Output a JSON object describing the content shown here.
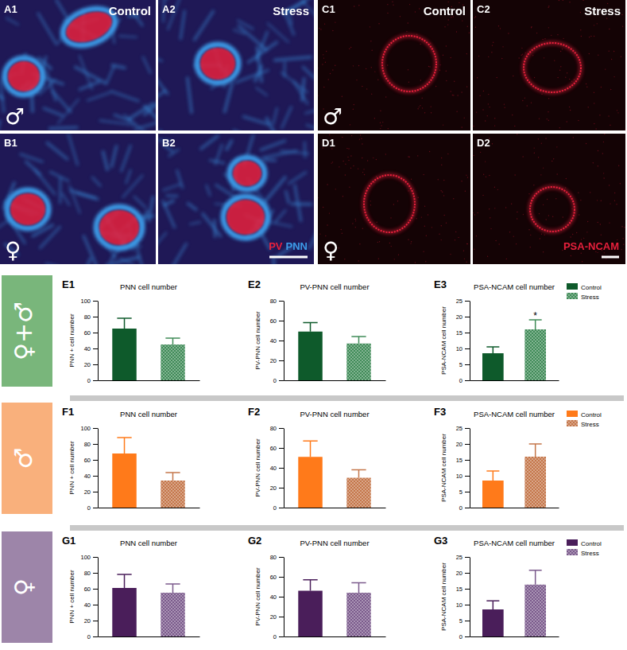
{
  "image_groups": [
    {
      "stain": [
        {
          "text": "PV",
          "color": "#e8203c"
        },
        {
          "text": "PNN",
          "color": "#3c9be8"
        }
      ],
      "panels": [
        {
          "panel": "A1",
          "condition": "Control",
          "sex": "♂"
        },
        {
          "panel": "A2",
          "condition": "Stress"
        },
        {
          "panel": "B1",
          "sex": "♀"
        },
        {
          "panel": "B2"
        }
      ]
    },
    {
      "stain": [
        {
          "text": "PSA-NCAM",
          "color": "#e8203c"
        }
      ],
      "panels": [
        {
          "panel": "C1",
          "condition": "Control",
          "sex": "♂"
        },
        {
          "panel": "C2",
          "condition": "Stress"
        },
        {
          "panel": "D1",
          "sex": "♀"
        },
        {
          "panel": "D2"
        }
      ]
    }
  ],
  "rows": [
    {
      "label": "♀+♂",
      "color": "#79b67b"
    },
    {
      "label": "♂",
      "color": "#f9b07c"
    },
    {
      "label": "♀",
      "color": "#9d85a9"
    }
  ],
  "chart_data": [
    {
      "type": "bar",
      "panel": "E1",
      "title": "PNN cell number",
      "y_label": "PNN + cell number",
      "categories": [
        null
      ],
      "ylim": [
        0,
        100
      ],
      "yticks": [
        0,
        20,
        40,
        60,
        80,
        100
      ],
      "series": [
        {
          "color": "#0e5a2b",
          "values": [
            65
          ],
          "errors": [
            13
          ]
        },
        {
          "color": "#3f8b57",
          "values": [
            45
          ],
          "errors": [
            8
          ]
        }
      ]
    },
    {
      "type": "bar",
      "panel": "E2",
      "title": "PV-PNN cell number",
      "y_label": "PV-PNN cell number",
      "categories": [
        null
      ],
      "ylim": [
        0,
        80
      ],
      "yticks": [
        0,
        20,
        40,
        60,
        80
      ],
      "series": [
        {
          "color": "#0e5a2b",
          "values": [
            49
          ],
          "errors": [
            9
          ]
        },
        {
          "color": "#3f8b57",
          "values": [
            37
          ],
          "errors": [
            7
          ]
        }
      ]
    },
    {
      "type": "bar",
      "panel": "E3",
      "title": "PSA-NCAM cell number",
      "y_label": "PSA-NCAM cell number",
      "categories": [
        null
      ],
      "ylim": [
        0,
        25
      ],
      "yticks": [
        0,
        5,
        10,
        15,
        20,
        25
      ],
      "legend": "upper right",
      "series": [
        {
          "name": "Control",
          "color": "#0e5a2b",
          "values": [
            8.5
          ],
          "errors": [
            2
          ]
        },
        {
          "name": "Stress",
          "color": "#3f8b57",
          "values": [
            16
          ],
          "errors": [
            3
          ]
        }
      ],
      "annotations": [
        {
          "text": "*",
          "series": 1,
          "category": 0
        }
      ]
    },
    {
      "type": "bar",
      "panel": "F1",
      "title": "PNN cell number",
      "y_label": "PNN + cell number",
      "categories": [
        null
      ],
      "ylim": [
        0,
        100
      ],
      "yticks": [
        0,
        20,
        40,
        60,
        80,
        100
      ],
      "series": [
        {
          "color": "#ff7a1a",
          "values": [
            68
          ],
          "errors": [
            20
          ]
        },
        {
          "color": "#c4764a",
          "values": [
            34
          ],
          "errors": [
            10
          ]
        }
      ]
    },
    {
      "type": "bar",
      "panel": "F2",
      "title": "PV-PNN cell number",
      "y_label": "PV-PNN cell number",
      "categories": [
        null
      ],
      "ylim": [
        0,
        80
      ],
      "yticks": [
        0,
        20,
        40,
        60,
        80
      ],
      "series": [
        {
          "color": "#ff7a1a",
          "values": [
            51
          ],
          "errors": [
            16
          ]
        },
        {
          "color": "#c4764a",
          "values": [
            30
          ],
          "errors": [
            8
          ]
        }
      ]
    },
    {
      "type": "bar",
      "panel": "F3",
      "title": "PSA-NCAM cell number",
      "y_label": "PSA-NCAM cell number",
      "categories": [
        null
      ],
      "ylim": [
        0,
        25
      ],
      "yticks": [
        0,
        5,
        10,
        15,
        20,
        25
      ],
      "legend": "upper right",
      "series": [
        {
          "name": "Control",
          "color": "#ff7a1a",
          "values": [
            8.5
          ],
          "errors": [
            3
          ]
        },
        {
          "name": "Stress",
          "color": "#c4764a",
          "values": [
            16
          ],
          "errors": [
            4
          ]
        }
      ]
    },
    {
      "type": "bar",
      "panel": "G1",
      "title": "PNN cell number",
      "y_label": "PNN + cell number",
      "categories": [
        null
      ],
      "ylim": [
        0,
        100
      ],
      "yticks": [
        0,
        20,
        40,
        60,
        80,
        100
      ],
      "series": [
        {
          "color": "#4a1e5a",
          "values": [
            61
          ],
          "errors": [
            17
          ]
        },
        {
          "color": "#7b5a8c",
          "values": [
            55
          ],
          "errors": [
            11
          ]
        }
      ]
    },
    {
      "type": "bar",
      "panel": "G2",
      "title": "PV-PNN cell number",
      "y_label": "PV-PNN cell number",
      "categories": [
        null
      ],
      "ylim": [
        0,
        80
      ],
      "yticks": [
        0,
        20,
        40,
        60,
        80
      ],
      "series": [
        {
          "color": "#4a1e5a",
          "values": [
            46
          ],
          "errors": [
            11
          ]
        },
        {
          "color": "#7b5a8c",
          "values": [
            44
          ],
          "errors": [
            10
          ]
        }
      ]
    },
    {
      "type": "bar",
      "panel": "G3",
      "title": "PSA-NCAM cell number",
      "y_label": "PSA-NCAM cell number",
      "categories": [
        null
      ],
      "ylim": [
        0,
        25
      ],
      "yticks": [
        0,
        5,
        10,
        15,
        20,
        25
      ],
      "legend": "upper right",
      "series": [
        {
          "name": "Control",
          "color": "#4a1e5a",
          "values": [
            8.5
          ],
          "errors": [
            2.7
          ]
        },
        {
          "name": "Stress",
          "color": "#7b5a8c",
          "values": [
            16.3
          ],
          "errors": [
            4.5
          ]
        }
      ]
    }
  ]
}
